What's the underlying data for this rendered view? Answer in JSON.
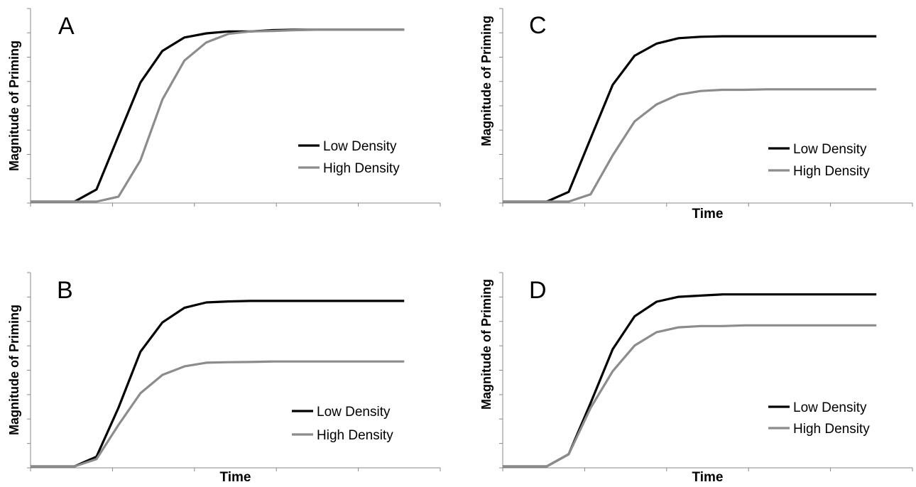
{
  "chart_data": [
    {
      "type": "line",
      "panel": "A",
      "ylabel": "Magnitude of Priming",
      "xlabel": "",
      "x": [
        0,
        1,
        2,
        3,
        4,
        5,
        6,
        7,
        8,
        9,
        10,
        11,
        12,
        13,
        14,
        15,
        16,
        17
      ],
      "ylim": [
        0,
        8
      ],
      "grid": false,
      "legend_position": "right",
      "series": [
        {
          "name": "Low Density",
          "color": "#000000",
          "values": [
            0,
            0,
            0,
            0.5,
            2.7,
            4.9,
            6.2,
            6.75,
            6.92,
            7.0,
            7.0,
            7.05,
            7.07,
            7.07,
            7.07,
            7.07,
            7.07,
            7.07
          ]
        },
        {
          "name": "High Density",
          "color": "#8c8c8c",
          "values": [
            0,
            0,
            0,
            0,
            0.2,
            1.7,
            4.2,
            5.8,
            6.55,
            6.9,
            7.0,
            7.02,
            7.05,
            7.07,
            7.07,
            7.07,
            7.07,
            7.07
          ]
        }
      ]
    },
    {
      "type": "line",
      "panel": "B",
      "ylabel": "Magnitude of Priming",
      "xlabel": "Time",
      "x": [
        0,
        1,
        2,
        3,
        4,
        5,
        6,
        7,
        8,
        9,
        10,
        11,
        12,
        13,
        14,
        15,
        16,
        17
      ],
      "ylim": [
        0,
        8
      ],
      "grid": false,
      "legend_position": "right",
      "series": [
        {
          "name": "Low Density",
          "color": "#000000",
          "values": [
            0,
            0,
            0,
            0.4,
            2.4,
            4.7,
            5.9,
            6.5,
            6.72,
            6.76,
            6.78,
            6.78,
            6.78,
            6.78,
            6.78,
            6.78,
            6.78,
            6.78
          ]
        },
        {
          "name": "High Density",
          "color": "#8c8c8c",
          "values": [
            0,
            0,
            0,
            0.3,
            1.7,
            3.0,
            3.75,
            4.1,
            4.25,
            4.27,
            4.28,
            4.3,
            4.3,
            4.3,
            4.3,
            4.3,
            4.3,
            4.3
          ]
        }
      ]
    },
    {
      "type": "line",
      "panel": "C",
      "ylabel": "Magnitude of Priming",
      "xlabel": "Time",
      "x": [
        0,
        1,
        2,
        3,
        4,
        5,
        6,
        7,
        8,
        9,
        10,
        11,
        12,
        13,
        14,
        15,
        16,
        17
      ],
      "ylim": [
        0,
        8
      ],
      "grid": false,
      "legend_position": "right",
      "series": [
        {
          "name": "Low Density",
          "color": "#000000",
          "values": [
            0,
            0,
            0,
            0.4,
            2.6,
            4.8,
            6.0,
            6.5,
            6.72,
            6.78,
            6.8,
            6.8,
            6.8,
            6.8,
            6.8,
            6.8,
            6.8,
            6.8
          ]
        },
        {
          "name": "High Density",
          "color": "#8c8c8c",
          "values": [
            0,
            0,
            0,
            0,
            0.3,
            1.9,
            3.3,
            4.0,
            4.4,
            4.55,
            4.6,
            4.6,
            4.62,
            4.62,
            4.62,
            4.62,
            4.62,
            4.62
          ]
        }
      ]
    },
    {
      "type": "line",
      "panel": "D",
      "ylabel": "Magnitude of Priming",
      "xlabel": "Time",
      "x": [
        0,
        1,
        2,
        3,
        4,
        5,
        6,
        7,
        8,
        9,
        10,
        11,
        12,
        13,
        14,
        15,
        16,
        17
      ],
      "ylim": [
        0,
        8
      ],
      "grid": false,
      "legend_position": "right",
      "series": [
        {
          "name": "Low Density",
          "color": "#000000",
          "values": [
            0,
            0,
            0,
            0.5,
            2.6,
            4.8,
            6.15,
            6.75,
            6.95,
            7.0,
            7.05,
            7.05,
            7.05,
            7.05,
            7.05,
            7.05,
            7.05,
            7.05
          ]
        },
        {
          "name": "High Density",
          "color": "#8c8c8c",
          "values": [
            0,
            0,
            0,
            0.5,
            2.4,
            3.9,
            4.95,
            5.5,
            5.7,
            5.75,
            5.75,
            5.78,
            5.78,
            5.78,
            5.78,
            5.78,
            5.78,
            5.78
          ]
        }
      ]
    }
  ]
}
